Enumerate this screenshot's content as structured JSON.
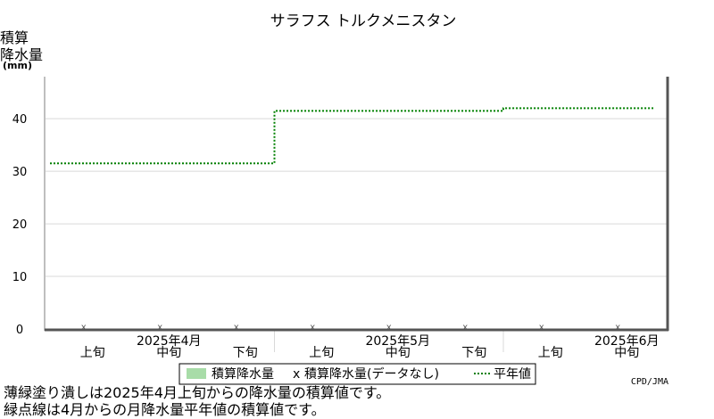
{
  "chart_data": {
    "type": "line",
    "title": "サラフス トルクメニスタン",
    "ylabel": [
      "積算",
      "降水量"
    ],
    "yunit": "(mm)",
    "ylim": [
      0,
      48
    ],
    "yticks": [
      0,
      10,
      20,
      30,
      40
    ],
    "grid": true,
    "periods": [
      {
        "dekad": "上旬",
        "month": ""
      },
      {
        "dekad": "中旬",
        "month": "2025年4月"
      },
      {
        "dekad": "下旬",
        "month": ""
      },
      {
        "dekad": "上旬",
        "month": ""
      },
      {
        "dekad": "中旬",
        "month": "2025年5月"
      },
      {
        "dekad": "下旬",
        "month": ""
      },
      {
        "dekad": "上旬",
        "month": ""
      },
      {
        "dekad": "中旬",
        "month": "2025年6月"
      }
    ],
    "series": [
      {
        "name": "積算降水量",
        "color": "#a8dca8",
        "values": [
          0,
          0,
          0,
          0,
          0,
          0,
          0,
          0
        ]
      },
      {
        "name": "積算降水量(データなし)",
        "marker": "x",
        "values": [
          0,
          0,
          0,
          0,
          0,
          0,
          0,
          0
        ]
      },
      {
        "name": "平年値",
        "color": "#008000",
        "style": "dotted",
        "values": [
          31.5,
          31.5,
          31.5,
          41.5,
          41.5,
          41.5,
          42,
          42
        ]
      }
    ],
    "legend": {
      "position": "bottom",
      "marker_x": "x"
    },
    "credit": "CPD/JMA"
  },
  "notes": [
    "薄緑塗り潰しは2025年4月上旬からの降水量の積算値です。",
    "緑点線は4月からの月降水量平年値の積算値です。"
  ]
}
